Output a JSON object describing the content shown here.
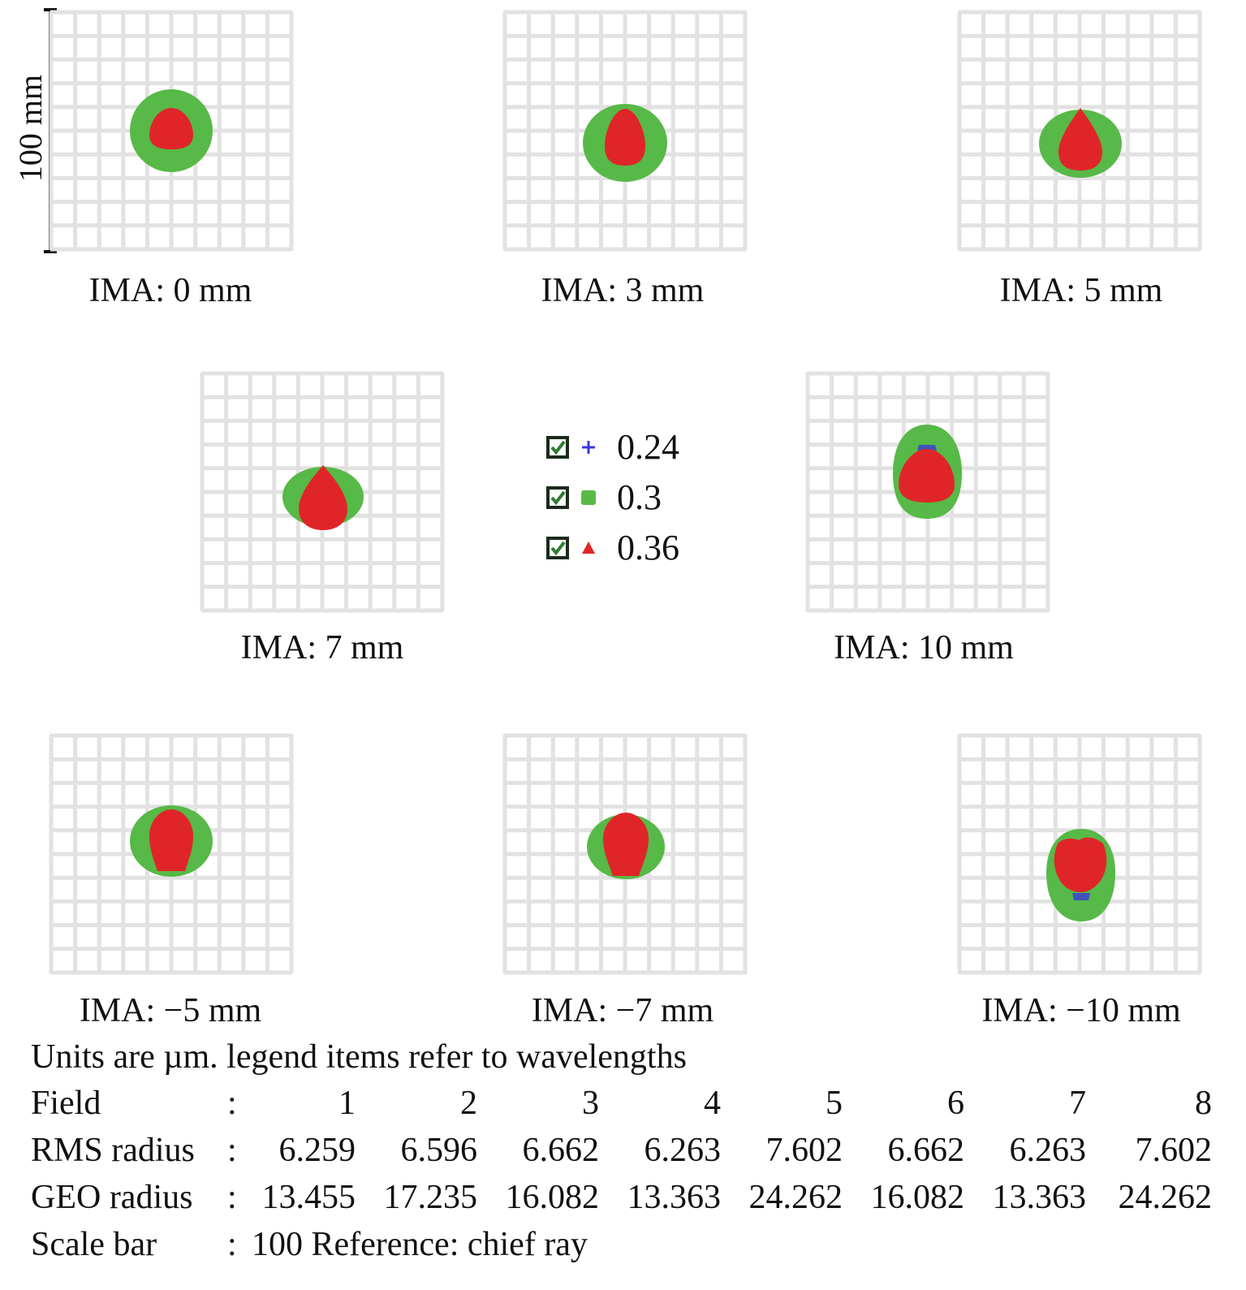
{
  "scale_bar_label": "100 mm",
  "panels": [
    {
      "caption": "IMA: 0 mm"
    },
    {
      "caption": "IMA: 3 mm"
    },
    {
      "caption": "IMA: 5 mm"
    },
    {
      "caption": "IMA: 7 mm"
    },
    {
      "caption": "IMA: 10 mm"
    },
    {
      "caption": "IMA: −5 mm"
    },
    {
      "caption": "IMA: −7 mm"
    },
    {
      "caption": "IMA: −10 mm"
    }
  ],
  "legend": [
    {
      "value": "0.24",
      "marker": "plus-icon",
      "color": "#3a3ad8"
    },
    {
      "value": "0.3",
      "marker": "square-icon",
      "color": "#57b947"
    },
    {
      "value": "0.36",
      "marker": "triangle-icon",
      "color": "#e02528"
    }
  ],
  "colors": {
    "grid": "#e2e2e2",
    "green": "#57b947",
    "red": "#e02528",
    "blue": "#3a3ad8"
  },
  "units_note": "Units are µm. legend items refer to wavelengths",
  "table": {
    "field": {
      "label": "Field",
      "values": [
        "1",
        "2",
        "3",
        "4",
        "5",
        "6",
        "7",
        "8"
      ]
    },
    "rms": {
      "label": "RMS radius",
      "values": [
        "6.259",
        "6.596",
        "6.662",
        "6.263",
        "7.602",
        "6.662",
        "6.263",
        "7.602"
      ]
    },
    "geo": {
      "label": "GEO radius",
      "values": [
        "13.455",
        "17.235",
        "16.082",
        "13.363",
        "24.262",
        "16.082",
        "13.363",
        "24.262"
      ]
    },
    "scale": {
      "label": "Scale bar",
      "text": "100 Reference: chief ray"
    }
  },
  "colon": ":"
}
